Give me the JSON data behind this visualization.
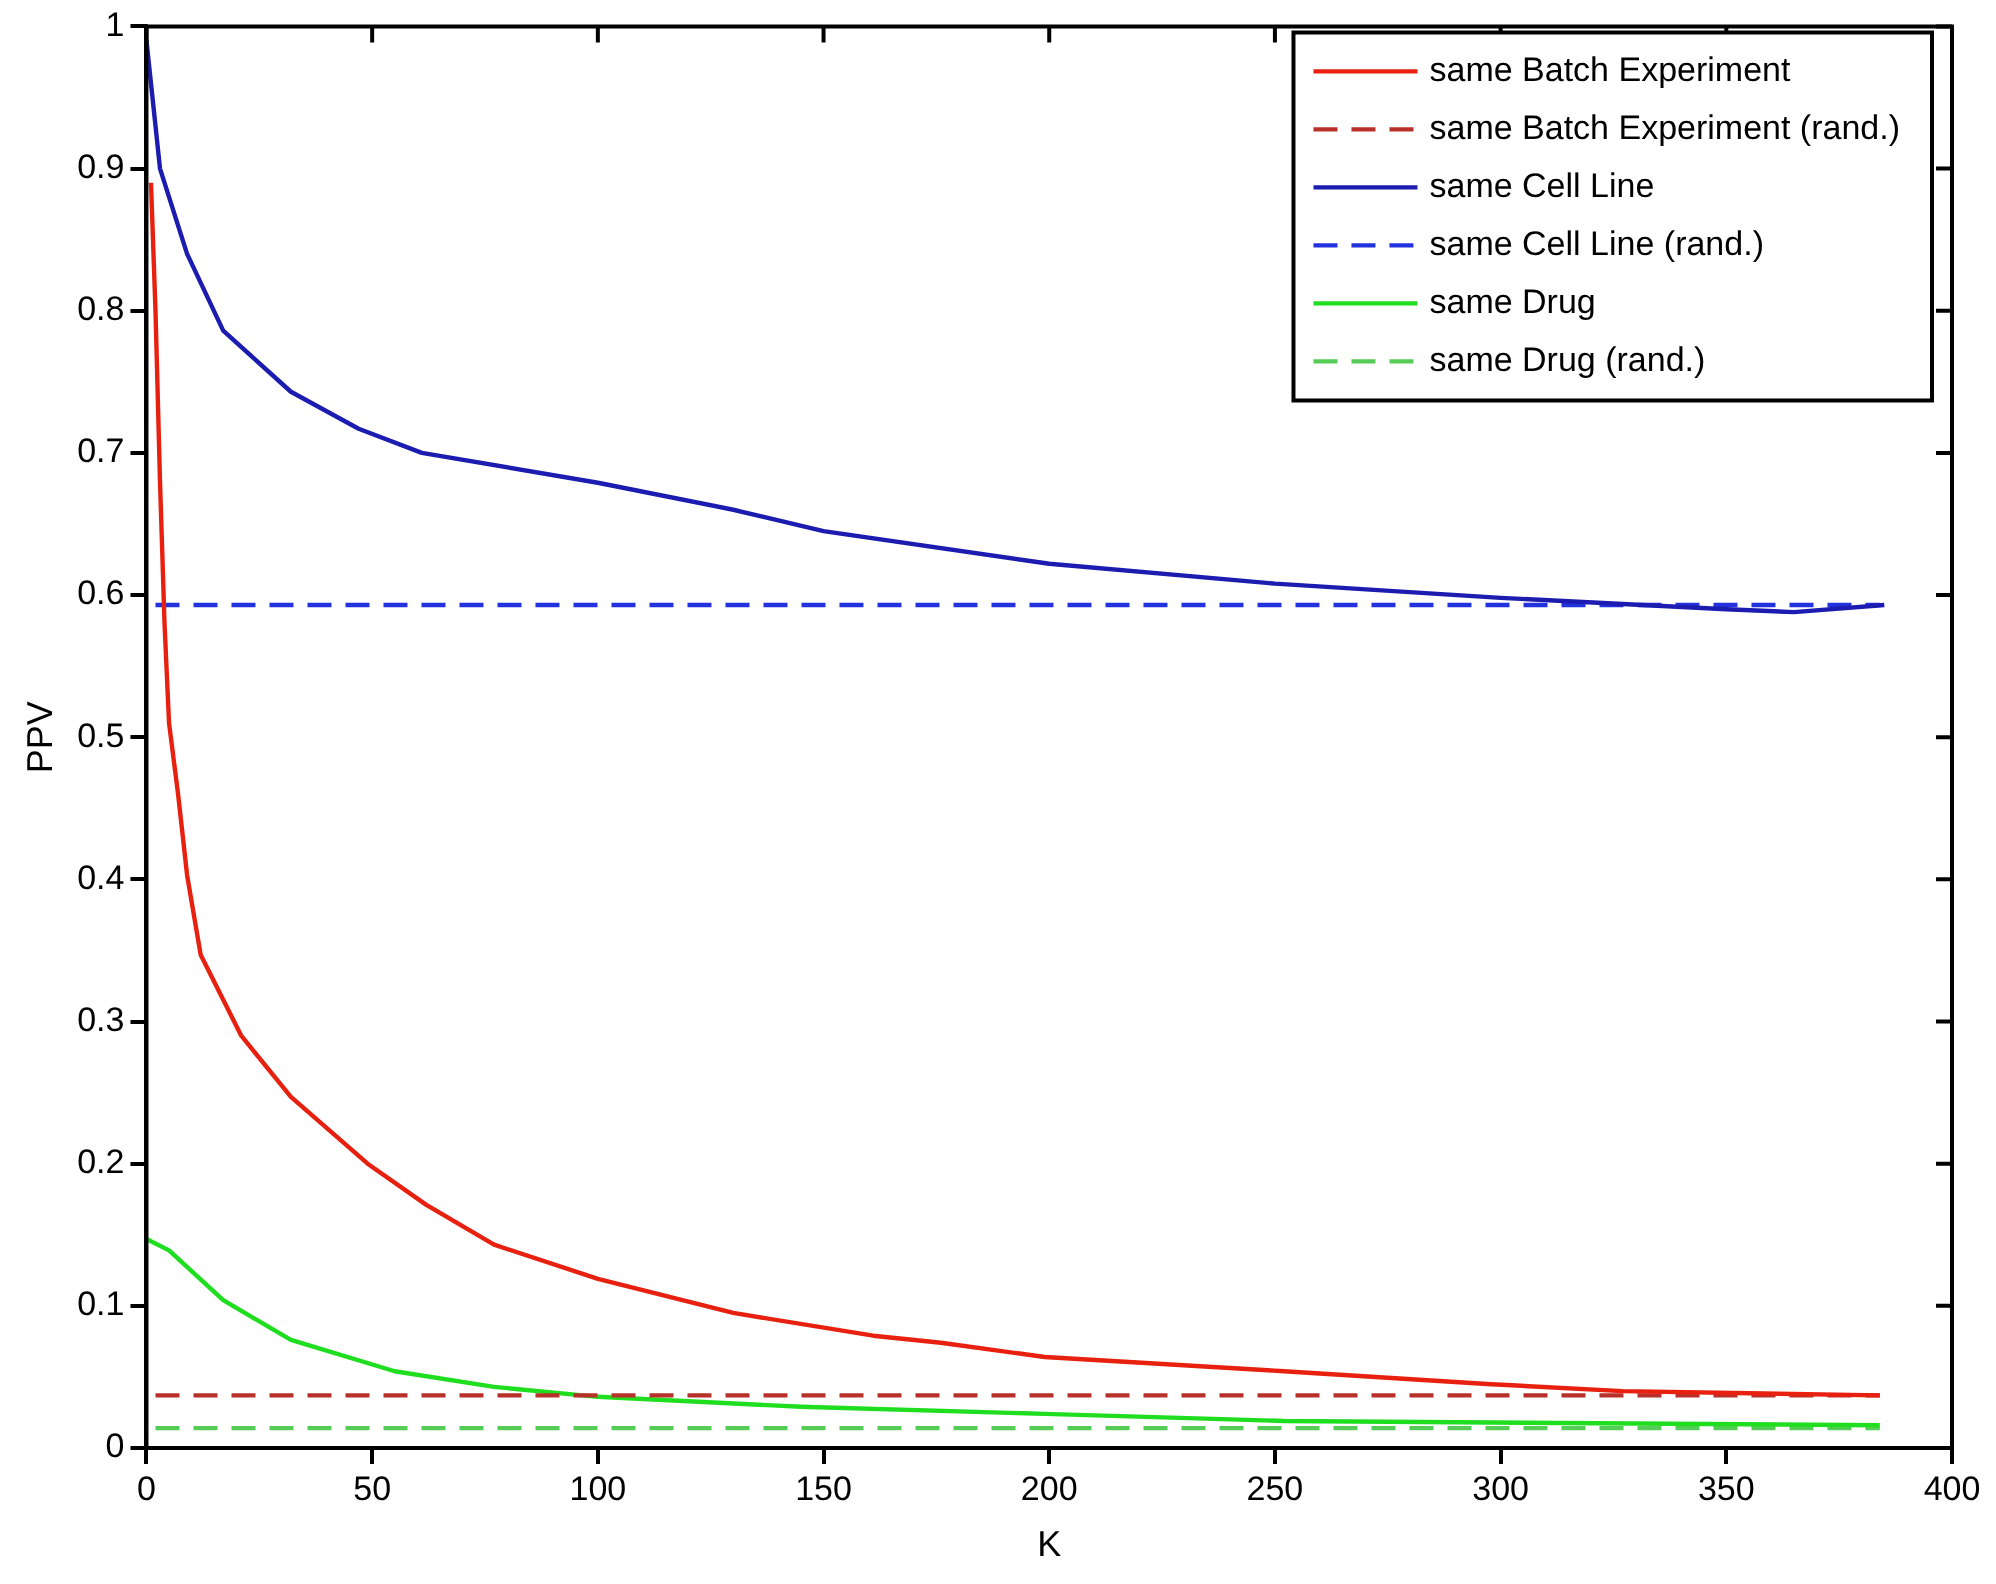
{
  "chart_data": {
    "type": "line",
    "xlabel": "K",
    "ylabel": "PPV",
    "xlim": [
      0,
      400
    ],
    "xticks": [
      0,
      50,
      100,
      150,
      200,
      250,
      300,
      350,
      400
    ],
    "ylim": [
      0,
      1
    ],
    "yticks": [
      0,
      0.1,
      0.2,
      0.3,
      0.4,
      0.5,
      0.6,
      0.7,
      0.8,
      0.9,
      1
    ],
    "grid": false,
    "legend": "top right",
    "marker": "none",
    "series": [
      {
        "name": "same Batch Experiment",
        "color": "#e8200f",
        "line_style": "solid",
        "x": [
          1,
          2,
          3,
          4,
          5,
          7,
          9,
          12,
          21,
          32,
          49,
          62,
          77,
          100,
          130,
          161,
          176,
          199,
          252,
          297,
          327,
          384
        ],
        "values": [
          0.89,
          0.8,
          0.68,
          0.58,
          0.51,
          0.46,
          0.403,
          0.347,
          0.29,
          0.247,
          0.2,
          0.171,
          0.143,
          0.119,
          0.095,
          0.079,
          0.074,
          0.064,
          0.054,
          0.045,
          0.04,
          0.037
        ]
      },
      {
        "name": "same Batch Experiment (rand.)",
        "color": "#b8302a",
        "line_style": "dashed",
        "x": [
          2,
          384
        ],
        "values": [
          0.037,
          0.037
        ]
      },
      {
        "name": "same Cell Line",
        "color": "#1c1cb0",
        "line_style": "solid",
        "x": [
          0,
          3,
          9,
          17,
          32,
          47,
          61,
          100,
          130,
          150,
          200,
          250,
          300,
          350,
          365,
          385
        ],
        "values": [
          0.99,
          0.9,
          0.84,
          0.786,
          0.743,
          0.717,
          0.7,
          0.679,
          0.66,
          0.645,
          0.622,
          0.608,
          0.598,
          0.59,
          0.588,
          0.593
        ]
      },
      {
        "name": "same Cell Line (rand.)",
        "color": "#2233dd",
        "line_style": "dashed",
        "x": [
          2,
          384
        ],
        "values": [
          0.593,
          0.593
        ]
      },
      {
        "name": "same Drug",
        "color": "#1fdd1f",
        "line_style": "solid",
        "x": [
          0,
          5,
          17,
          32,
          55,
          77,
          100,
          145,
          199,
          252,
          384
        ],
        "values": [
          0.147,
          0.139,
          0.104,
          0.076,
          0.054,
          0.043,
          0.036,
          0.029,
          0.024,
          0.019,
          0.016
        ]
      },
      {
        "name": "same Drug (rand.)",
        "color": "#55cc55",
        "line_style": "dashed",
        "x": [
          2,
          384
        ],
        "values": [
          0.014,
          0.014
        ]
      }
    ]
  }
}
